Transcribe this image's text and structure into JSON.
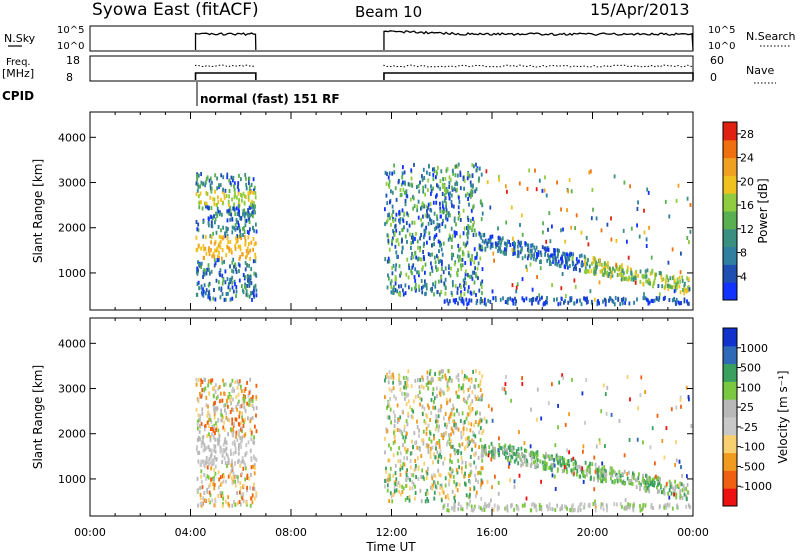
{
  "header": {
    "title": "Syowa East (fitACF)",
    "beam": "Beam 10",
    "date": "15/Apr/2013"
  },
  "control": {
    "nsky_label": "N.Sky",
    "nsky_ticks": [
      "10^5",
      "10^0"
    ],
    "nsearch_label": "N.Search",
    "nsearch_ticks": [
      "10^5",
      "10^0"
    ],
    "freq_label": "Freq.",
    "freq_unit": "[MHz]",
    "freq_ticks": [
      "18",
      "8"
    ],
    "nave_label": "Nave",
    "nave_ticks": [
      "60",
      "0"
    ],
    "cpid_label": "CPID",
    "cpid_value": "normal (fast) 151 RF"
  },
  "colors": {
    "power": [
      "#1133ff",
      "#1f4fb0",
      "#2e7fa0",
      "#3a9080",
      "#58b050",
      "#8fcc40",
      "#f0c020",
      "#f0a020",
      "#f07010",
      "#e02010"
    ],
    "velocity": [
      "#ee1111",
      "#f06010",
      "#f09a20",
      "#f8d070",
      "#c8c8c8",
      "#b8b8b8",
      "#7ac840",
      "#3aa060",
      "#2f6ab8",
      "#1133cc"
    ]
  },
  "chart_data": [
    {
      "type": "heatmap",
      "title": "Power",
      "xlabel": "",
      "ylabel": "Slant Range [km]",
      "x_ticks": [
        "00:00",
        "04:00",
        "08:00",
        "12:00",
        "16:00",
        "20:00",
        "00:00"
      ],
      "xlim_hours": [
        0,
        24
      ],
      "ylim": [
        180,
        4560
      ],
      "y_ticks": [
        1000,
        2000,
        3000,
        4000
      ],
      "colorbar_label": "Power [dB]",
      "colorbar_ticks": [
        "4",
        "8",
        "12",
        "16",
        "20",
        "24",
        "28"
      ],
      "colorbar_range": [
        0,
        30
      ],
      "data_regions_hours": [
        [
          4.2,
          6.6
        ],
        [
          11.7,
          24
        ]
      ]
    },
    {
      "type": "heatmap",
      "title": "Velocity",
      "xlabel": "Time UT",
      "ylabel": "Slant Range [km]",
      "x_ticks": [
        "00:00",
        "04:00",
        "08:00",
        "12:00",
        "16:00",
        "20:00",
        "00:00"
      ],
      "xlim_hours": [
        0,
        24
      ],
      "ylim": [
        180,
        4560
      ],
      "y_ticks": [
        1000,
        2000,
        3000,
        4000
      ],
      "colorbar_label": "Velocity [m s⁻¹]",
      "colorbar_ticks": [
        "1000",
        "500",
        "100",
        "25",
        "-25",
        "-100",
        "-500",
        "-1000"
      ],
      "data_regions_hours": [
        [
          4.2,
          6.6
        ],
        [
          11.7,
          24
        ]
      ]
    }
  ]
}
